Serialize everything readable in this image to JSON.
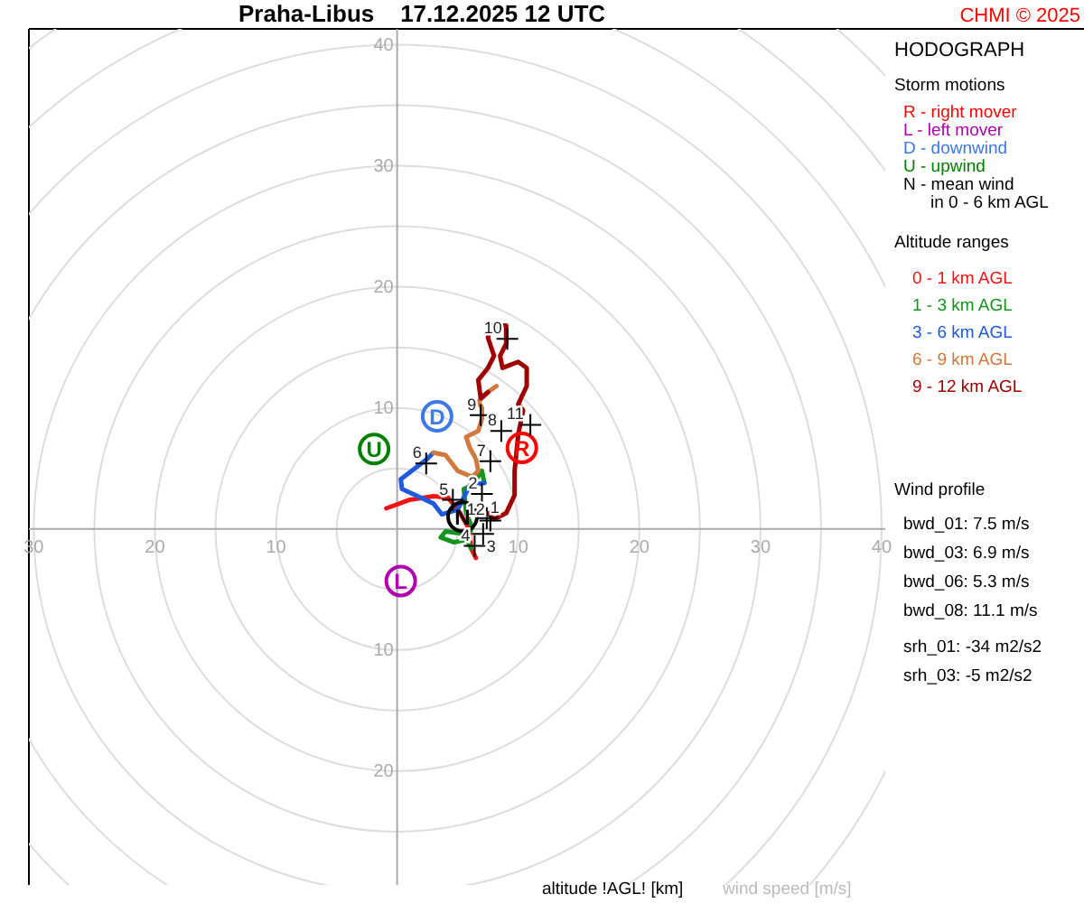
{
  "chart_data": {
    "type": "line",
    "title": "Praha-Libus    17.12.2025 12 UTC",
    "subtitle": "HODOGRAPH",
    "xlabel": "wind speed [m/s]",
    "legend_title": "Storm motions",
    "xlim": [
      -30.4,
      40.3
    ],
    "ylim": [
      -29.4,
      41.3
    ],
    "xticks": [
      {
        "value": -30,
        "label": "30"
      },
      {
        "value": -20,
        "label": "20"
      },
      {
        "value": -10,
        "label": "10"
      },
      {
        "value": 10,
        "label": "10"
      },
      {
        "value": 20,
        "label": "20"
      },
      {
        "value": 30,
        "label": "30"
      },
      {
        "value": 40,
        "label": "40"
      }
    ],
    "yticks": [
      {
        "value": -20,
        "label": "20"
      },
      {
        "value": -10,
        "label": "10"
      },
      {
        "value": 10,
        "label": "10"
      },
      {
        "value": 20,
        "label": "20"
      },
      {
        "value": 30,
        "label": "30"
      },
      {
        "value": 40,
        "label": "40"
      }
    ],
    "legend": "top right",
    "series": [
      {
        "type": "scatter",
        "name": "R - right mover",
        "color": "#ff0000",
        "marker": "circle",
        "x": [
          10.3
        ],
        "values": [
          6.7
        ]
      },
      {
        "type": "scatter",
        "name": "L - left mover",
        "color": "#b000b0",
        "marker": "circle",
        "x": [
          0.3
        ],
        "values": [
          -4.3
        ]
      },
      {
        "type": "scatter",
        "name": "D - downwind",
        "color": "#3c78e6",
        "marker": "circle",
        "x": [
          3.3
        ],
        "values": [
          9.3
        ]
      },
      {
        "type": "scatter",
        "name": "U - upwind",
        "color": "#008000",
        "marker": "circle",
        "x": [
          -1.9
        ],
        "values": [
          6.6
        ]
      },
      {
        "type": "scatter",
        "name": "N - mean wind in 0 - 6 km AGL",
        "color": "#000000",
        "marker": "circle",
        "x": [
          5.4
        ],
        "values": [
          1.0
        ]
      },
      {
        "name": "0 - 1 km AGL",
        "color": "#f01414",
        "x": [
          -0.9,
          1.0,
          3.0,
          4.2,
          5.2,
          6.0,
          6.1,
          6.5
        ],
        "values": [
          1.7,
          2.4,
          2.7,
          2.6,
          1.3,
          -0.1,
          -1.6,
          -2.4
        ]
      },
      {
        "name": "1 - 3 km AGL",
        "color": "#14961e",
        "x": [
          6.1,
          5.5,
          4.0,
          3.6,
          4.7,
          5.7,
          6.2,
          5.7,
          5.5,
          6.2,
          7.0,
          7.2
        ],
        "values": [
          -1.6,
          -0.4,
          -0.2,
          -0.7,
          -1.1,
          -0.9,
          0.1,
          1.3,
          3.3,
          3.6,
          4.8,
          3.8
        ]
      },
      {
        "name": "3 - 6 km AGL",
        "color": "#1e5adc",
        "x": [
          7.2,
          6.0,
          5.5,
          5.0,
          3.7,
          3.0,
          1.5,
          0.4,
          0.3,
          1.2,
          2.5,
          3.0
        ],
        "values": [
          3.8,
          3.6,
          2.6,
          1.6,
          1.2,
          2.1,
          2.8,
          3.3,
          4.1,
          4.8,
          5.8,
          6.3
        ]
      },
      {
        "name": "6 - 9 km AGL",
        "color": "#d2783c",
        "x": [
          3.0,
          4.0,
          5.0,
          6.2,
          6.7,
          6.5,
          6.0,
          5.7,
          6.7,
          7.0,
          7.0,
          6.7,
          7.5,
          8.2
        ],
        "values": [
          6.3,
          6.1,
          4.8,
          4.3,
          4.8,
          5.8,
          6.7,
          7.6,
          8.1,
          9.1,
          10.0,
          10.5,
          11.3,
          11.8
        ]
      },
      {
        "name": "9 - 12 km AGL",
        "color": "#a00000",
        "x": [
          7.5,
          6.9,
          6.7,
          7.5,
          8.0,
          7.5,
          7.7,
          9.0,
          9.0,
          8.5,
          8.7,
          10.0,
          10.7,
          10.7,
          10.0,
          10.4,
          10.0,
          9.7,
          9.7,
          9.0,
          8.0,
          7.5
        ],
        "values": [
          11.3,
          10.8,
          12.3,
          13.3,
          14.3,
          15.8,
          16.8,
          16.8,
          15.3,
          14.3,
          13.3,
          13.8,
          13.3,
          11.8,
          10.3,
          9.8,
          7.8,
          4.8,
          2.8,
          1.3,
          0.8,
          1.3
        ]
      },
      {
        "type": "scatter",
        "color": "#000000",
        "marker": "cross",
        "x": [
          7.4,
          7.0,
          7.1,
          6.4,
          4.6,
          2.4,
          7.7,
          8.6,
          6.9,
          9.1,
          11.0,
          7.7
        ],
        "values": [
          0.9,
          2.9,
          -0.4,
          -1.4,
          2.4,
          5.4,
          5.6,
          8.1,
          9.4,
          15.7,
          8.6,
          0.7
        ]
      }
    ],
    "annotations": [
      {
        "text": "R",
        "x": 10.3,
        "y": 6.7
      },
      {
        "text": "L",
        "x": 0.3,
        "y": -4.3
      },
      {
        "text": "D",
        "x": 3.3,
        "y": 9.3
      },
      {
        "text": "U",
        "x": -1.9,
        "y": 6.6
      },
      {
        "text": "N",
        "x": 5.4,
        "y": 1.0
      },
      {
        "text": "1",
        "x": 7.4,
        "y": 0.9
      },
      {
        "text": "2",
        "x": 7.0,
        "y": 2.9
      },
      {
        "text": "3",
        "x": 7.1,
        "y": -0.4
      },
      {
        "text": "4",
        "x": 6.4,
        "y": -1.4
      },
      {
        "text": "5",
        "x": 4.6,
        "y": 2.4
      },
      {
        "text": "6",
        "x": 2.4,
        "y": 5.4
      },
      {
        "text": "7",
        "x": 7.7,
        "y": 5.6
      },
      {
        "text": "8",
        "x": 8.6,
        "y": 8.1
      },
      {
        "text": "9",
        "x": 6.9,
        "y": 9.4
      },
      {
        "text": "10",
        "x": 9.1,
        "y": 15.7
      },
      {
        "text": "11",
        "x": 11.0,
        "y": 8.6
      },
      {
        "text": "12",
        "x": 7.7,
        "y": 0.7
      },
      "CHMI © 2025",
      "Altitude ranges",
      "Wind profile",
      "bwd_01: 7.5 m/s",
      "bwd_03: 6.9 m/s",
      "bwd_06: 5.3 m/s",
      "bwd_08: 11.1 m/s",
      "srh_01: -34 m2/s2",
      "srh_03: -5 m2/s2",
      "altitude !AGL! [km]"
    ]
  }
}
